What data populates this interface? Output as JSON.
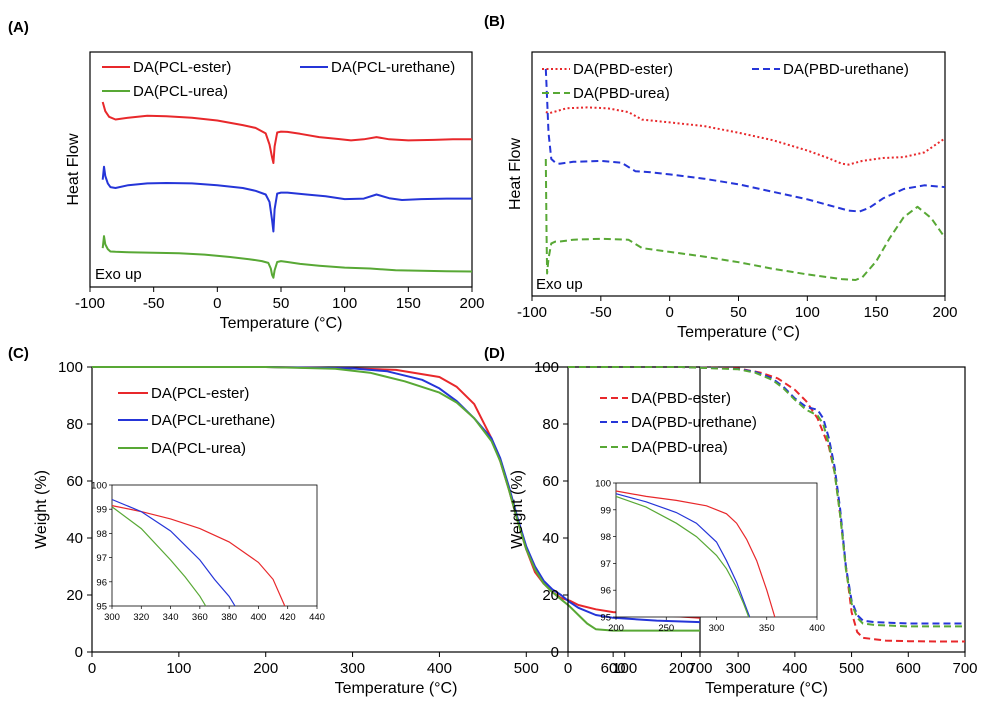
{
  "colors": {
    "red": "#e8282b",
    "blue": "#2535d8",
    "green": "#58a835",
    "axis": "#000000"
  },
  "chart_data": [
    {
      "panel": "(A)",
      "type": "line",
      "xlabel": "Temperature (°C)",
      "ylabel": "Heat Flow",
      "xlim": [
        -100,
        200
      ],
      "xticks": [
        -100,
        -50,
        0,
        50,
        100,
        150,
        200
      ],
      "note": "Exo up",
      "legend_placement": "top",
      "series": [
        {
          "name": "DA(PCL-ester)",
          "color": "red",
          "dash": "solid",
          "x": [
            -90,
            -88,
            -85,
            -80,
            -70,
            -55,
            -40,
            -20,
            0,
            20,
            30,
            38,
            41,
            43,
            44,
            45,
            47,
            50,
            55,
            65,
            80,
            95,
            105,
            115,
            125,
            135,
            150,
            170,
            185,
            200
          ],
          "y": [
            8.8,
            8.3,
            8.0,
            7.85,
            7.95,
            8.05,
            8.03,
            7.95,
            7.8,
            7.55,
            7.4,
            7.1,
            6.5,
            5.8,
            5.5,
            6.4,
            7.15,
            7.2,
            7.18,
            7.08,
            6.9,
            6.8,
            6.72,
            6.78,
            6.9,
            6.78,
            6.72,
            6.75,
            6.78,
            6.78
          ]
        },
        {
          "name": "DA(PCL-urethane)",
          "color": "blue",
          "dash": "solid",
          "x": [
            -90,
            -89,
            -88,
            -86,
            -84,
            -80,
            -70,
            -55,
            -40,
            -20,
            0,
            20,
            30,
            38,
            41,
            43,
            44,
            45,
            47,
            50,
            55,
            70,
            85,
            100,
            115,
            125,
            135,
            145,
            160,
            180,
            200
          ],
          "y": [
            4.6,
            5.3,
            4.8,
            4.4,
            4.2,
            4.15,
            4.3,
            4.4,
            4.42,
            4.4,
            4.3,
            4.15,
            4.0,
            3.8,
            3.4,
            2.4,
            1.8,
            3.0,
            3.85,
            3.9,
            3.9,
            3.8,
            3.7,
            3.55,
            3.58,
            3.8,
            3.6,
            3.5,
            3.55,
            3.58,
            3.58
          ]
        },
        {
          "name": "DA(PCL-urea)",
          "color": "green",
          "dash": "solid",
          "x": [
            -90,
            -89,
            -88,
            -86,
            -84,
            -80,
            -70,
            -50,
            -30,
            -10,
            10,
            25,
            35,
            40,
            42,
            43,
            44,
            45,
            47,
            50,
            55,
            65,
            80,
            100,
            120,
            140,
            160,
            180,
            200
          ],
          "y": [
            0.9,
            1.55,
            1.1,
            0.85,
            0.72,
            0.7,
            0.68,
            0.65,
            0.62,
            0.55,
            0.42,
            0.3,
            0.2,
            0.1,
            -0.2,
            -0.55,
            -0.7,
            -0.3,
            0.15,
            0.2,
            0.15,
            0.05,
            -0.05,
            -0.15,
            -0.2,
            -0.3,
            -0.32,
            -0.35,
            -0.36
          ]
        }
      ]
    },
    {
      "panel": "(B)",
      "type": "line",
      "xlabel": "Temperature (°C)",
      "ylabel": "Heat Flow",
      "xlim": [
        -100,
        200
      ],
      "xticks": [
        -100,
        -50,
        0,
        50,
        100,
        150,
        200
      ],
      "note": "Exo up",
      "legend_placement": "top",
      "series": [
        {
          "name": "DA(PBD-ester)",
          "color": "red",
          "dash": "dotted",
          "x": [
            -90,
            -87,
            -82,
            -75,
            -60,
            -45,
            -30,
            -20,
            0,
            25,
            50,
            75,
            100,
            115,
            125,
            130,
            140,
            155,
            170,
            185,
            200
          ],
          "y": [
            8.3,
            8.25,
            8.35,
            8.5,
            8.55,
            8.5,
            8.3,
            7.9,
            7.75,
            7.55,
            7.2,
            6.8,
            6.25,
            5.85,
            5.55,
            5.5,
            5.7,
            5.85,
            5.9,
            6.15,
            6.9
          ]
        },
        {
          "name": "DA(PBD-urethane)",
          "color": "blue",
          "dash": "dashed",
          "x": [
            -90,
            -89,
            -88,
            -86,
            -83,
            -80,
            -70,
            -50,
            -35,
            -25,
            -15,
            0,
            25,
            50,
            75,
            100,
            115,
            130,
            138,
            145,
            155,
            170,
            185,
            200
          ],
          "y": [
            10.6,
            9.0,
            7.2,
            5.8,
            5.6,
            5.55,
            5.65,
            5.7,
            5.6,
            5.15,
            5.1,
            4.98,
            4.75,
            4.45,
            4.05,
            3.65,
            3.35,
            3.05,
            3.0,
            3.2,
            3.7,
            4.2,
            4.4,
            4.3
          ]
        },
        {
          "name": "DA(PBD-urea)",
          "color": "green",
          "dash": "dashed",
          "x": [
            -90,
            -89.5,
            -89,
            -88,
            -86,
            -83,
            -80,
            -70,
            -50,
            -30,
            -20,
            -10,
            0,
            25,
            50,
            75,
            100,
            125,
            135,
            140,
            150,
            160,
            170,
            180,
            190,
            200
          ],
          "y": [
            5.8,
            2.0,
            -0.3,
            0.5,
            1.3,
            1.4,
            1.4,
            1.5,
            1.55,
            1.5,
            1.05,
            0.95,
            0.85,
            0.6,
            0.3,
            -0.05,
            -0.35,
            -0.6,
            -0.65,
            -0.5,
            0.35,
            1.6,
            2.7,
            3.25,
            2.65,
            1.6
          ]
        }
      ]
    },
    {
      "panel": "(C)",
      "type": "line",
      "xlabel": "Temperature (°C)",
      "ylabel": "Weight (%)",
      "xlim": [
        0,
        700
      ],
      "ylim": [
        0,
        100
      ],
      "xticks": [
        0,
        100,
        200,
        300,
        400,
        500,
        600,
        700
      ],
      "yticks": [
        0,
        20,
        40,
        60,
        80,
        100
      ],
      "legend_placement": "top-left",
      "series": [
        {
          "name": "DA(PCL-ester)",
          "color": "red",
          "dash": "solid",
          "x": [
            0,
            200,
            300,
            350,
            400,
            420,
            440,
            460,
            470,
            480,
            490,
            500,
            510,
            520,
            530,
            540,
            550,
            560,
            580,
            600,
            650,
            700
          ],
          "y": [
            100,
            100,
            99.5,
            99,
            96.5,
            93,
            87,
            75,
            67,
            57,
            46,
            36,
            28,
            24,
            21,
            19,
            18,
            16.5,
            15,
            14,
            13,
            12
          ]
        },
        {
          "name": "DA(PCL-urethane)",
          "color": "blue",
          "dash": "solid",
          "x": [
            0,
            200,
            300,
            340,
            380,
            400,
            420,
            440,
            460,
            470,
            480,
            490,
            500,
            510,
            520,
            530,
            540,
            550,
            560,
            580,
            600,
            650,
            700
          ],
          "y": [
            100,
            100,
            99.5,
            98.5,
            95.5,
            92.5,
            88,
            82,
            75,
            68,
            58,
            47,
            37,
            30,
            25,
            22,
            20,
            17.5,
            15.5,
            13,
            12,
            11,
            10.5
          ]
        },
        {
          "name": "DA(PCL-urea)",
          "color": "green",
          "dash": "solid",
          "x": [
            0,
            200,
            280,
            320,
            360,
            400,
            420,
            440,
            460,
            470,
            480,
            490,
            500,
            510,
            520,
            530,
            540,
            550,
            560,
            570,
            580,
            600,
            650,
            700
          ],
          "y": [
            100,
            100,
            99.4,
            98,
            95,
            91,
            87.5,
            82,
            74,
            67,
            57,
            46,
            36,
            29,
            24,
            21,
            18.5,
            16,
            13,
            10,
            8,
            7.5,
            7.5,
            7.5
          ]
        }
      ],
      "inset": {
        "xlim": [
          300,
          440
        ],
        "ylim": [
          95,
          100
        ],
        "xticks": [
          300,
          320,
          340,
          360,
          380,
          400,
          420,
          440
        ],
        "yticks": [
          95,
          96,
          97,
          98,
          99,
          100
        ],
        "series": [
          {
            "color": "red",
            "x": [
              300,
              320,
              340,
              360,
              380,
              400,
              410,
              418
            ],
            "y": [
              99.15,
              98.9,
              98.6,
              98.2,
              97.65,
              96.8,
              96.1,
              95
            ]
          },
          {
            "color": "blue",
            "x": [
              300,
              320,
              340,
              360,
              370,
              380,
              384
            ],
            "y": [
              99.4,
              98.9,
              98.1,
              96.9,
              96.1,
              95.4,
              95
            ]
          },
          {
            "color": "green",
            "x": [
              300,
              320,
              340,
              350,
              360,
              364
            ],
            "y": [
              99.1,
              98.2,
              96.9,
              96.2,
              95.4,
              95
            ]
          }
        ]
      }
    },
    {
      "panel": "(D)",
      "type": "line",
      "xlabel": "Temperature (°C)",
      "ylabel": "Weight (%)",
      "xlim": [
        0,
        700
      ],
      "ylim": [
        0,
        100
      ],
      "xticks": [
        0,
        100,
        200,
        300,
        400,
        500,
        600,
        700
      ],
      "yticks": [
        0,
        20,
        40,
        60,
        80,
        100
      ],
      "legend_placement": "top-left",
      "series": [
        {
          "name": "DA(PBD-ester)",
          "color": "red",
          "dash": "dashed",
          "x": [
            0,
            200,
            300,
            340,
            370,
            400,
            420,
            440,
            460,
            470,
            480,
            490,
            500,
            510,
            520,
            540,
            560,
            600,
            650,
            700
          ],
          "y": [
            100,
            100,
            99.5,
            98,
            96,
            92,
            88,
            82,
            72,
            63,
            48,
            30,
            14,
            7,
            5,
            4.5,
            4,
            3.8,
            3.7,
            3.7
          ]
        },
        {
          "name": "DA(PBD-urethane)",
          "color": "blue",
          "dash": "dashed",
          "x": [
            0,
            200,
            300,
            330,
            360,
            380,
            400,
            420,
            440,
            450,
            460,
            470,
            480,
            490,
            500,
            510,
            520,
            540,
            600,
            700
          ],
          "y": [
            100,
            100,
            99.3,
            98.3,
            96,
            93,
            89,
            86,
            85,
            82,
            75,
            65,
            50,
            30,
            18,
            13,
            11,
            10.5,
            10,
            10
          ]
        },
        {
          "name": "DA(PBD-urea)",
          "color": "green",
          "dash": "dashed",
          "x": [
            0,
            200,
            300,
            330,
            360,
            380,
            400,
            420,
            440,
            450,
            460,
            470,
            480,
            490,
            500,
            510,
            520,
            540,
            600,
            700
          ],
          "y": [
            100,
            100,
            99.2,
            98,
            95.5,
            92.5,
            88.5,
            85,
            83,
            80,
            73,
            63,
            48,
            29,
            17,
            12,
            10,
            9.5,
            9,
            9
          ]
        }
      ],
      "inset": {
        "xlim": [
          200,
          400
        ],
        "ylim": [
          95,
          100
        ],
        "xticks": [
          200,
          250,
          300,
          350,
          400
        ],
        "yticks": [
          95,
          96,
          97,
          98,
          99,
          100
        ],
        "series": [
          {
            "color": "red",
            "x": [
              200,
              230,
              260,
              290,
              310,
              320,
              330,
              340,
              350,
              358
            ],
            "y": [
              99.7,
              99.5,
              99.35,
              99.15,
              98.85,
              98.5,
              97.9,
              97.1,
              96,
              95
            ]
          },
          {
            "color": "blue",
            "x": [
              200,
              230,
              260,
              280,
              300,
              310,
              320,
              327,
              333
            ],
            "y": [
              99.6,
              99.3,
              98.9,
              98.5,
              97.8,
              97.1,
              96.3,
              95.6,
              95
            ]
          },
          {
            "color": "green",
            "x": [
              200,
              230,
              260,
              280,
              300,
              310,
              320,
              327,
              332
            ],
            "y": [
              99.5,
              99.1,
              98.5,
              98,
              97.3,
              96.8,
              96.1,
              95.5,
              95
            ]
          }
        ]
      }
    }
  ]
}
